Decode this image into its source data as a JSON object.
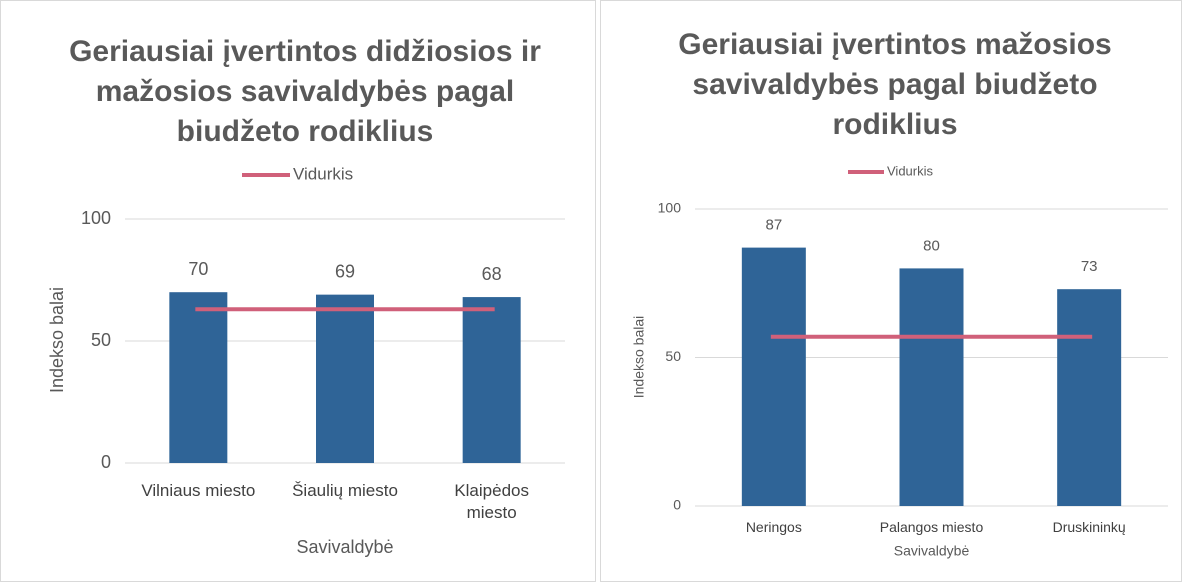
{
  "chart_data": [
    {
      "type": "bar",
      "title": "Geriausiai įvertintos didžiosios ir mažosios savivaldybės pagal biudžeto rodiklius",
      "categories": [
        "Vilniaus miesto",
        "Šiaulių miesto",
        "Klaipėdos miesto"
      ],
      "values": [
        70,
        69,
        68
      ],
      "color": "#2f6497",
      "series": [
        {
          "name": "Vidurkis",
          "color": "#d0607a",
          "type": "line",
          "values": [
            63,
            63,
            63
          ]
        }
      ],
      "ylim": [
        0,
        100
      ],
      "yticks": [
        0,
        50,
        100
      ],
      "grid": true,
      "xlabel": "Savivaldybė",
      "ylabel": "Indekso balai",
      "legend": "top"
    },
    {
      "type": "bar",
      "title": "Geriausiai įvertintos mažosios savivaldybės pagal biudžeto rodiklius",
      "categories": [
        "Neringos",
        "Palangos miesto",
        "Druskininkų"
      ],
      "values": [
        87,
        80,
        73
      ],
      "color": "#2f6497",
      "series": [
        {
          "name": "Vidurkis",
          "color": "#d0607a",
          "type": "line",
          "values": [
            57,
            57,
            57
          ]
        }
      ],
      "ylim": [
        0,
        100
      ],
      "yticks": [
        0,
        50,
        100
      ],
      "grid": true,
      "xlabel": "Savivaldybė",
      "ylabel": "Indekso balai",
      "legend": "top"
    }
  ]
}
